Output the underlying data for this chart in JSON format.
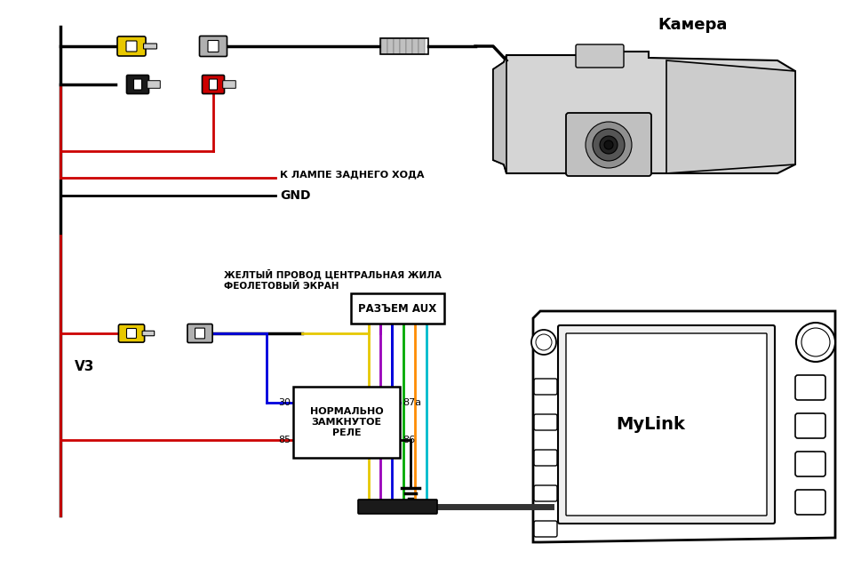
{
  "bg_color": "#ffffff",
  "text_camera": "Камера",
  "text_lamp": "К ЛАМПЕ ЗАДНЕГО ХОДА",
  "text_gnd": "GND",
  "text_yellow_wire": "ЖЕЛТЫЙ ПРОВОД ЦЕНТРАЛЬНАЯ ЖИЛА",
  "text_violet_screen": "ФЕОЛЕТОВЫЙ ЭКРАН",
  "text_aux": "РАЗЪЕМ AUX",
  "text_relay": "НОРМАЛЬНО\nЗАМКНУТОЕ\nРЕЛЕ",
  "text_v3": "V3",
  "text_mylink": "MyLink",
  "text_30": "30",
  "text_85": "85",
  "text_87a": "87a",
  "text_86": "86",
  "wire_black": "#000000",
  "wire_red": "#cc0000",
  "wire_yellow": "#e6c800",
  "wire_violet": "#9900bb",
  "wire_blue": "#0000dd",
  "wire_green": "#00aa00",
  "wire_orange": "#ff8c00",
  "wire_cyan": "#00bbcc",
  "connector_yellow": "#e8c800",
  "connector_black": "#1a1a1a",
  "connector_red": "#cc0000",
  "connector_gray": "#aaaaaa",
  "lw": 2.0,
  "lw_thick": 2.5
}
